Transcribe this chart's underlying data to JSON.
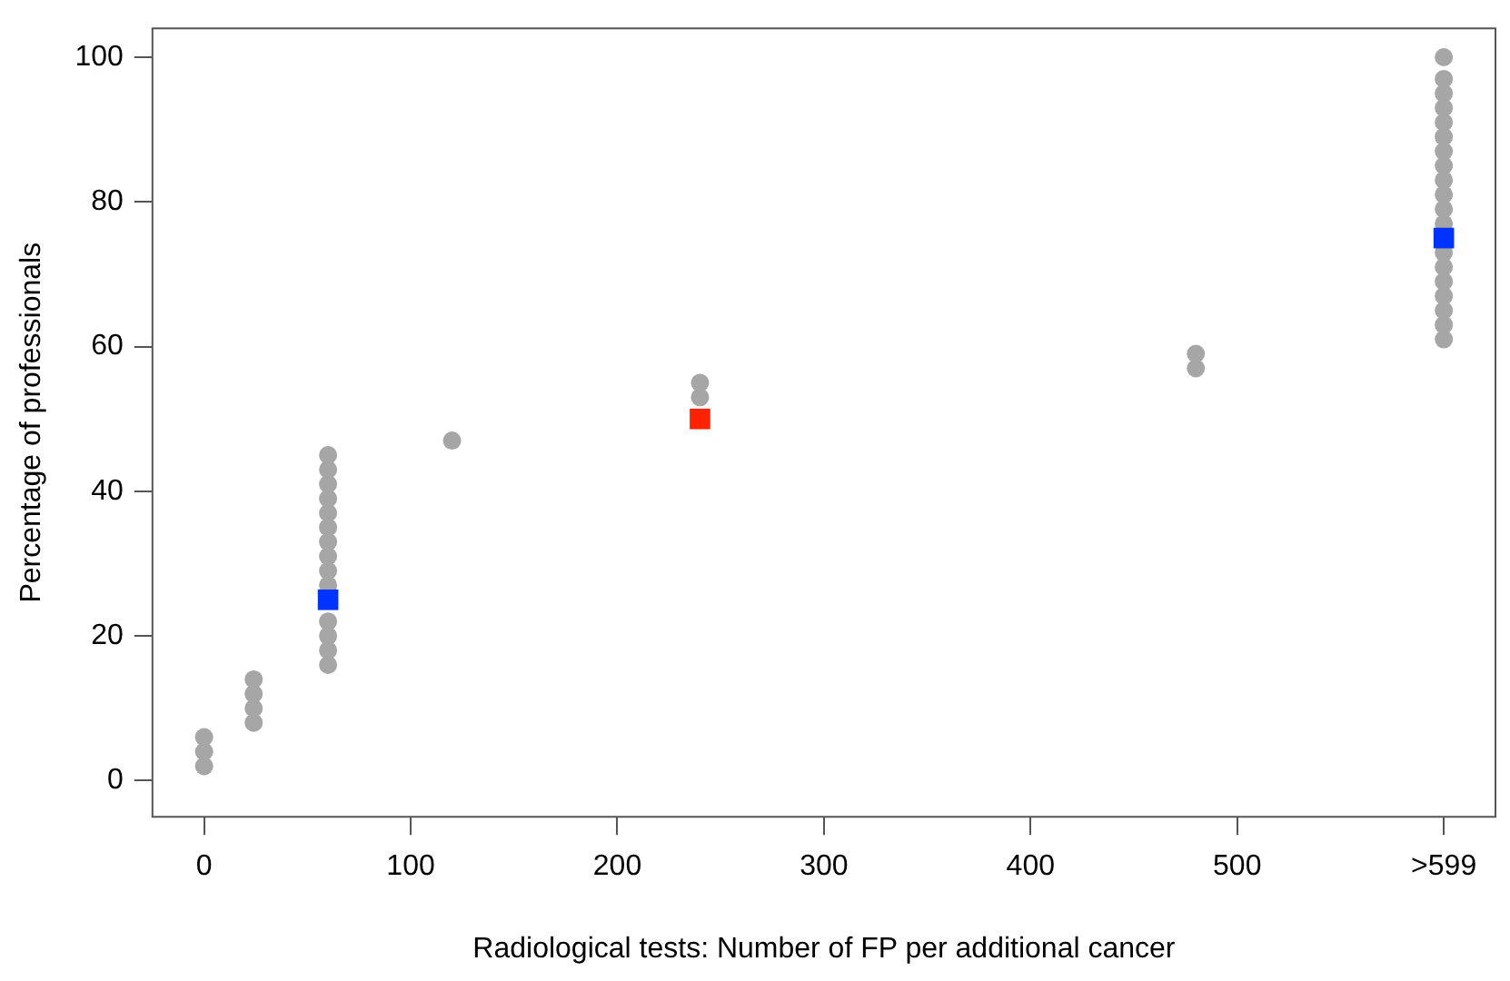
{
  "chart_data": {
    "type": "scatter",
    "xlabel": "Radiological tests: Number of FP per additional cancer",
    "ylabel": "Percentage of professionals",
    "xlim": [
      -25,
      625
    ],
    "ylim": [
      -5,
      104
    ],
    "xticks": [
      0,
      100,
      200,
      300,
      400,
      500,
      {
        "value": 600,
        "label": ">599"
      }
    ],
    "yticks": [
      0,
      20,
      40,
      60,
      80,
      100
    ],
    "grid": false,
    "legend": false,
    "series": [
      {
        "color": "#a6a6a6",
        "marker": "circle",
        "x": [
          0,
          0,
          0,
          24,
          24,
          24,
          24,
          60,
          60,
          60,
          60,
          60,
          60,
          60,
          60,
          60,
          60,
          60,
          60,
          60,
          60,
          120,
          240,
          240,
          480,
          480,
          600,
          600,
          600,
          600,
          600,
          600,
          600,
          600,
          600,
          600,
          600,
          600,
          600,
          600,
          600,
          600,
          600,
          600,
          600
        ],
        "values": [
          2,
          4,
          6,
          8,
          10,
          12,
          14,
          16,
          18,
          20,
          22,
          27,
          29,
          31,
          33,
          35,
          37,
          39,
          41,
          43,
          45,
          47,
          53,
          55,
          57,
          59,
          61,
          63,
          65,
          67,
          69,
          71,
          73,
          77,
          79,
          81,
          83,
          85,
          87,
          89,
          91,
          93,
          95,
          97,
          100
        ]
      },
      {
        "color": "#0033ff",
        "marker": "square",
        "x": [
          60,
          600
        ],
        "values": [
          25,
          75
        ]
      },
      {
        "color": "#ff2200",
        "marker": "square",
        "x": [
          240
        ],
        "values": [
          50
        ]
      }
    ]
  }
}
